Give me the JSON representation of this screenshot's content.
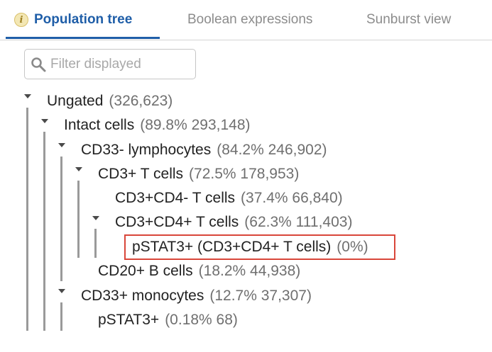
{
  "tabs": [
    {
      "label": "Population tree"
    },
    {
      "label": "Boolean expressions"
    },
    {
      "label": "Sunburst view"
    }
  ],
  "filter": {
    "placeholder": "Filter displayed",
    "value": ""
  },
  "tree": [
    {
      "name": "Ungated",
      "stats": "(326,623)"
    },
    {
      "name": "Intact cells",
      "stats": "(89.8%  293,148)"
    },
    {
      "name": "CD33- lymphocytes",
      "stats": "(84.2%  246,902)"
    },
    {
      "name": "CD3+ T cells",
      "stats": "(72.5%  178,953)"
    },
    {
      "name": "CD3+CD4- T cells",
      "stats": "(37.4%  66,840)"
    },
    {
      "name": "CD3+CD4+ T cells",
      "stats": "(62.3%  111,403)"
    },
    {
      "name": "pSTAT3+ (CD3+CD4+ T cells)",
      "stats": "(0%)"
    },
    {
      "name": "CD20+ B cells",
      "stats": "(18.2%  44,938)"
    },
    {
      "name": "CD33+ monocytes",
      "stats": "(12.7%  37,307)"
    },
    {
      "name": "pSTAT3+",
      "stats": "(0.18%  68)"
    }
  ],
  "colors": {
    "accent": "#1f5ea8",
    "highlight_border": "#d9463a",
    "info_icon": "#f3e7b4"
  },
  "icons": {
    "tab_active": "info-icon",
    "filter": "search-icon",
    "expand": "caret-down-icon"
  }
}
